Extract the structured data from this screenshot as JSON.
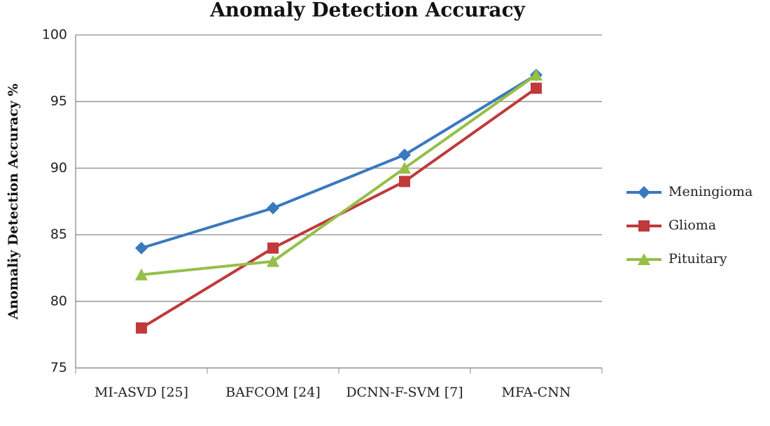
{
  "chart_data": {
    "type": "line",
    "title": "Anomaly Detection Accuracy",
    "y_label": "Anomaliy Detection Accuracy %",
    "categories": [
      "MI-ASVD [25]",
      "BAFCOM [24]",
      "DCNN-F-SVM [7]",
      "MFA-CNN"
    ],
    "series": [
      {
        "name": "Meningioma",
        "color": "#3a78c0",
        "marker": "diamond",
        "values": [
          84,
          87,
          91,
          97
        ]
      },
      {
        "name": "Glioma",
        "color": "#c0393b",
        "marker": "square",
        "values": [
          78,
          84,
          89,
          96
        ]
      },
      {
        "name": "Pituitary",
        "color": "#95bf47",
        "marker": "triangle",
        "values": [
          82,
          83,
          90,
          97
        ]
      }
    ],
    "ylim": [
      75,
      100
    ],
    "yticks": [
      75,
      80,
      85,
      90,
      95,
      100
    ],
    "grid": true,
    "legend": "right"
  }
}
